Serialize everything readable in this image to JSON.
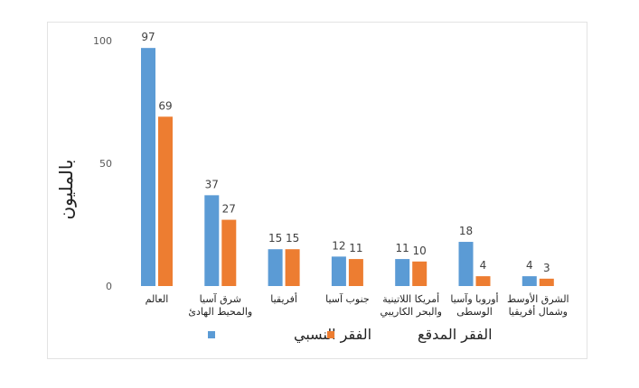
{
  "chart_data": {
    "type": "bar",
    "ylabel": "بالمليون",
    "yticks": [
      0,
      50,
      100
    ],
    "ylim": [
      0,
      100
    ],
    "categories": [
      [
        "العالم"
      ],
      [
        "شرق آسيا",
        "والمحيط الهادئ"
      ],
      [
        "أفريقيا"
      ],
      [
        "جنوب آسيا"
      ],
      [
        "أمريكا اللاتينية",
        "والبحر الكاريبي"
      ],
      [
        "أوروبا وآسيا",
        "الوسطى"
      ],
      [
        "الشرق الأوسط",
        "وشمال أفريقيا"
      ]
    ],
    "series": [
      {
        "name": "الفقر النسبي",
        "color": "#5b9bd5",
        "values": [
          97,
          37,
          15,
          12,
          11,
          18,
          4
        ]
      },
      {
        "name": "الفقر المدقع",
        "color": "#ed7d31",
        "values": [
          69,
          27,
          15,
          11,
          10,
          4,
          3
        ]
      }
    ],
    "legend": "bottom",
    "grid": false
  }
}
